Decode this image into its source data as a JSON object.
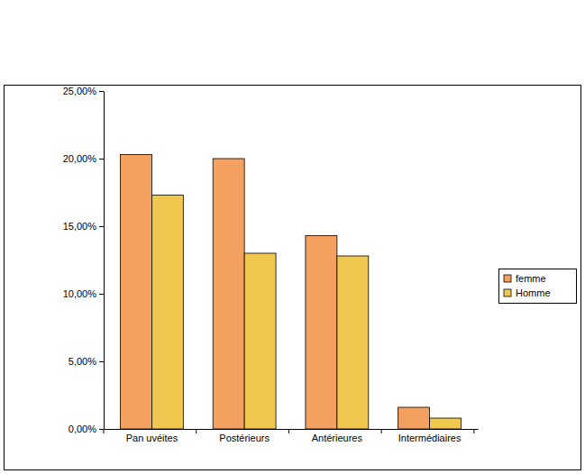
{
  "chart_data": {
    "type": "bar",
    "categories": [
      "Pan uvéites",
      "Postérieurs",
      "Antérieures",
      "Intermédiaires"
    ],
    "series": [
      {
        "name": "femme",
        "color": "#f4a060",
        "values": [
          20.3,
          20.0,
          14.3,
          1.6
        ]
      },
      {
        "name": "Homme",
        "color": "#f0c850",
        "values": [
          17.3,
          13.0,
          12.8,
          0.8
        ]
      }
    ],
    "ylim": [
      0,
      25
    ],
    "yticks": [
      {
        "value": 0,
        "label": "0,00%"
      },
      {
        "value": 5,
        "label": "5,00%"
      },
      {
        "value": 10,
        "label": "10,00%"
      },
      {
        "value": 15,
        "label": "15,00%"
      },
      {
        "value": 20,
        "label": "20,00%"
      },
      {
        "value": 25,
        "label": "25,00%"
      }
    ],
    "grid": false,
    "legend": "right"
  }
}
